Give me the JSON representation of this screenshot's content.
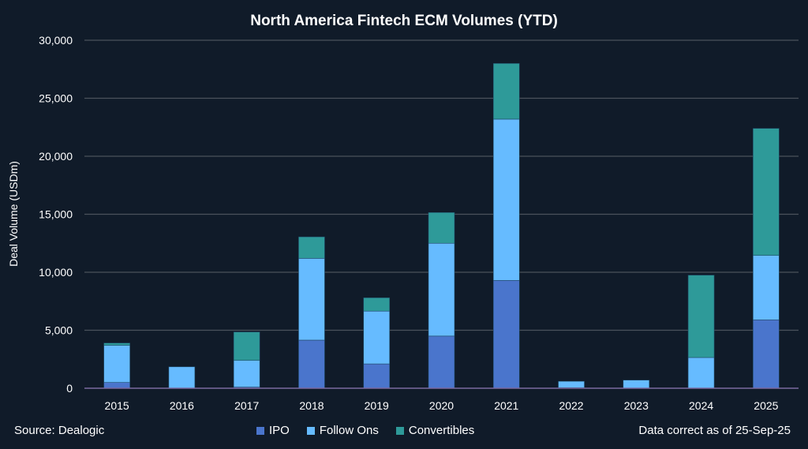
{
  "chart_data": {
    "type": "bar",
    "stacked": true,
    "title": "North America Fintech ECM Volumes (YTD)",
    "xlabel": "",
    "ylabel": "Deal Volume (USDm)",
    "ylim": [
      0,
      30000
    ],
    "yticks": [
      "0",
      "5,000",
      "10,000",
      "15,000",
      "20,000",
      "25,000",
      "30,000"
    ],
    "grid": true,
    "legend_position": "bottom",
    "categories": [
      "2015",
      "2016",
      "2017",
      "2018",
      "2019",
      "2020",
      "2021",
      "2022",
      "2023",
      "2024",
      "2025"
    ],
    "series": [
      {
        "name": "IPO",
        "color": "#4a75cc",
        "values": [
          500,
          0,
          100,
          4150,
          2100,
          4500,
          9300,
          50,
          0,
          0,
          5900
        ]
      },
      {
        "name": "Follow Ons",
        "color": "#66bbff",
        "values": [
          3200,
          1850,
          2300,
          7050,
          4550,
          8000,
          13900,
          550,
          700,
          2650,
          5550
        ]
      },
      {
        "name": "Convertibles",
        "color": "#2e9a99",
        "values": [
          200,
          0,
          2450,
          1850,
          1150,
          2650,
          4800,
          0,
          0,
          7100,
          10950
        ]
      }
    ]
  },
  "footer": {
    "source": "Source: Dealogic",
    "note": "Data correct as of 25-Sep-25"
  }
}
